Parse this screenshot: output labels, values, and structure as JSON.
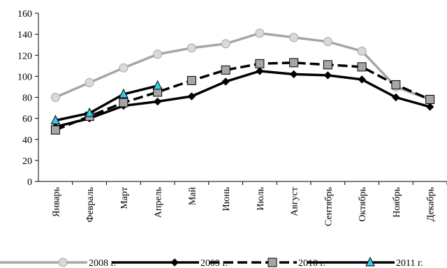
{
  "chart_data": {
    "type": "line",
    "categories": [
      "Январь",
      "Февраль",
      "Март",
      "Апрель",
      "Май",
      "Июнь",
      "Июль",
      "Август",
      "Сентябрь",
      "Октябрь",
      "Ноябрь",
      "Декабрь"
    ],
    "series": [
      {
        "name": "2008 г.",
        "color": "#a6a6a6",
        "marker": "circle",
        "marker_color": "#d9d9d9",
        "dashed": false,
        "values": [
          80,
          94,
          108,
          121,
          127,
          131,
          141,
          137,
          133,
          124,
          90,
          78
        ]
      },
      {
        "name": "2009 г.",
        "color": "#000000",
        "marker": "diamond",
        "marker_color": "#000000",
        "dashed": false,
        "values": [
          52,
          60,
          72,
          76,
          81,
          95,
          105,
          102,
          101,
          97,
          80,
          71
        ]
      },
      {
        "name": "2010 г.",
        "color": "#000000",
        "marker": "square",
        "marker_color": "#a6a6a6",
        "dashed": true,
        "values": [
          49,
          62,
          75,
          85,
          96,
          106,
          112,
          113,
          111,
          109,
          92,
          78
        ]
      },
      {
        "name": "2011 г.",
        "color": "#000000",
        "marker": "triangle",
        "marker_color": "#33ccee",
        "dashed": false,
        "values": [
          58,
          65,
          83,
          91,
          null,
          null,
          null,
          null,
          null,
          null,
          null,
          null
        ]
      }
    ],
    "ylim": [
      0,
      160
    ],
    "yticks": [
      0,
      20,
      40,
      60,
      80,
      100,
      120,
      140,
      160
    ]
  }
}
